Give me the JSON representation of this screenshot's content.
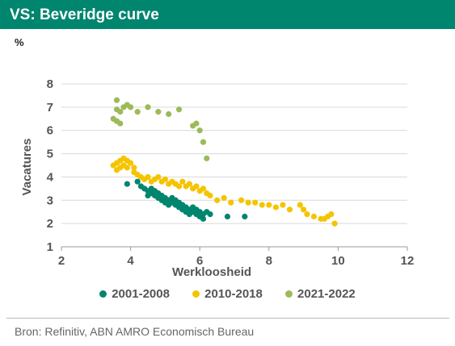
{
  "header": {
    "title": "VS: Beveridge curve"
  },
  "unit_label": "%",
  "source": "Bron: Refinitiv, ABN AMRO Economisch Bureau",
  "chart_data": {
    "type": "scatter",
    "title": "VS: Beveridge curve",
    "xlabel": "Werkloosheid",
    "ylabel": "Vacatures",
    "xlim": [
      2,
      12
    ],
    "ylim": [
      1,
      8
    ],
    "xticks": [
      2,
      4,
      6,
      8,
      10,
      12
    ],
    "yticks": [
      1,
      2,
      3,
      4,
      5,
      6,
      7,
      8
    ],
    "grid": "horizontal",
    "legend_position": "bottom",
    "series": [
      {
        "name": "2001-2008",
        "color": "#00856f",
        "x": [
          3.9,
          4.2,
          4.3,
          4.4,
          4.5,
          4.5,
          4.6,
          4.6,
          4.7,
          4.7,
          4.8,
          4.8,
          4.9,
          4.9,
          5.0,
          5.0,
          5.1,
          5.1,
          5.2,
          5.2,
          5.3,
          5.3,
          5.4,
          5.4,
          5.5,
          5.5,
          5.6,
          5.6,
          5.7,
          5.7,
          5.8,
          5.8,
          5.9,
          5.9,
          6.0,
          6.0,
          6.1,
          6.1,
          6.2,
          6.3,
          6.8,
          7.3
        ],
        "y": [
          3.7,
          3.8,
          3.6,
          3.5,
          3.2,
          3.4,
          3.3,
          3.5,
          3.2,
          3.4,
          3.1,
          3.3,
          3.0,
          3.2,
          2.9,
          3.1,
          2.8,
          3.0,
          2.9,
          3.1,
          2.8,
          3.0,
          2.7,
          2.9,
          2.6,
          2.8,
          2.5,
          2.7,
          2.6,
          2.4,
          2.5,
          2.7,
          2.4,
          2.6,
          2.3,
          2.5,
          2.4,
          2.2,
          2.5,
          2.4,
          2.3,
          2.3
        ]
      },
      {
        "name": "2010-2018",
        "color": "#f5c400",
        "x": [
          3.5,
          3.6,
          3.6,
          3.7,
          3.7,
          3.8,
          3.8,
          3.9,
          3.9,
          4.0,
          4.1,
          4.1,
          4.2,
          4.3,
          4.4,
          4.5,
          4.6,
          4.7,
          4.8,
          4.9,
          5.0,
          5.1,
          5.2,
          5.3,
          5.4,
          5.5,
          5.6,
          5.7,
          5.8,
          5.9,
          6.0,
          6.1,
          6.2,
          6.3,
          6.5,
          6.7,
          6.9,
          7.2,
          7.4,
          7.6,
          7.8,
          8.0,
          8.2,
          8.4,
          8.6,
          8.9,
          9.0,
          9.1,
          9.3,
          9.5,
          9.6,
          9.7,
          9.8,
          9.9
        ],
        "y": [
          4.5,
          4.6,
          4.3,
          4.7,
          4.4,
          4.8,
          4.5,
          4.7,
          4.4,
          4.6,
          4.4,
          4.2,
          4.1,
          4.0,
          3.9,
          4.0,
          3.8,
          3.9,
          4.0,
          3.8,
          3.9,
          3.7,
          3.8,
          3.7,
          3.6,
          3.8,
          3.6,
          3.7,
          3.5,
          3.6,
          3.4,
          3.5,
          3.3,
          3.2,
          3.0,
          3.1,
          2.9,
          3.0,
          2.9,
          2.9,
          2.8,
          2.8,
          2.7,
          2.8,
          2.6,
          2.8,
          2.6,
          2.4,
          2.3,
          2.2,
          2.2,
          2.3,
          2.4,
          2.0
        ]
      },
      {
        "name": "2021-2022",
        "color": "#9bbb59",
        "x": [
          3.5,
          3.6,
          3.6,
          3.6,
          3.7,
          3.7,
          3.8,
          3.9,
          4.0,
          4.2,
          4.5,
          4.8,
          5.1,
          5.4,
          5.8,
          5.9,
          6.0,
          6.1,
          6.2
        ],
        "y": [
          6.5,
          7.3,
          6.9,
          6.4,
          6.3,
          6.8,
          7.0,
          7.1,
          7.0,
          6.8,
          7.0,
          6.8,
          6.7,
          6.9,
          6.2,
          6.3,
          6.0,
          5.5,
          4.8
        ]
      }
    ]
  }
}
